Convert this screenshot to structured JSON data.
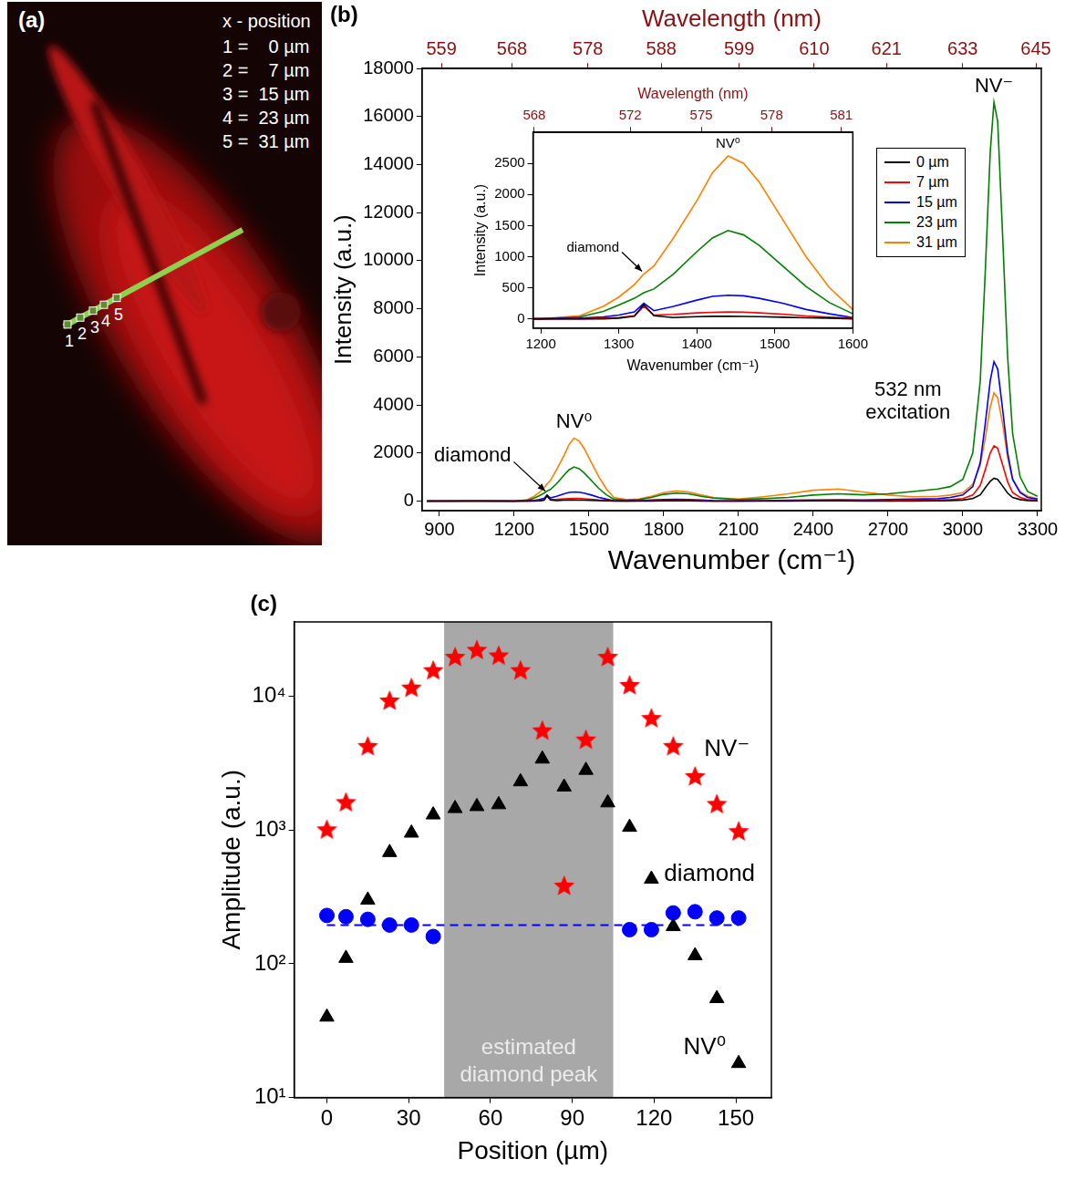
{
  "image_panel": {
    "panel_label": "(a)",
    "key_title": "x - position",
    "key_rows": [
      "1 =    0 µm",
      "2 =    7 µm",
      "3 =  15 µm",
      "4 =  23 µm",
      "5 =  31 µm"
    ],
    "markers": [
      "1",
      "2",
      "3",
      "4",
      "5"
    ]
  },
  "chart_data": [
    {
      "panel_label": "(b)",
      "type": "line",
      "x_label": "Wavenumber (cm⁻¹)",
      "y_label": "Intensity (a.u.)",
      "x2_label": "Wavelength (nm)",
      "xlim": [
        830,
        3315
      ],
      "xticks": [
        900,
        1200,
        1500,
        1800,
        2100,
        2400,
        2700,
        3000,
        3300
      ],
      "x2lim": [
        556.58,
        645.91
      ],
      "x2ticks": [
        559,
        568,
        578,
        588,
        599,
        610,
        621,
        633,
        645
      ],
      "ylim": [
        -400,
        18000
      ],
      "yticks": [
        0,
        2000,
        4000,
        6000,
        8000,
        10000,
        12000,
        14000,
        16000,
        18000
      ],
      "grid": false,
      "legend": "upper right",
      "x": [
        850,
        950,
        1050,
        1150,
        1200,
        1250,
        1280,
        1300,
        1320,
        1332,
        1345,
        1370,
        1400,
        1420,
        1440,
        1460,
        1480,
        1510,
        1540,
        1570,
        1600,
        1650,
        1700,
        1750,
        1800,
        1850,
        1900,
        1950,
        2000,
        2100,
        2200,
        2300,
        2400,
        2500,
        2600,
        2700,
        2800,
        2900,
        2950,
        3000,
        3040,
        3070,
        3090,
        3110,
        3125,
        3140,
        3160,
        3180,
        3200,
        3230,
        3260,
        3300
      ],
      "series": [
        {
          "name": "0 µm",
          "color": "#000000",
          "values": [
            0,
            0,
            0,
            0,
            0,
            0,
            0,
            10,
            40,
            230,
            50,
            20,
            35,
            40,
            40,
            38,
            35,
            25,
            15,
            10,
            0,
            0,
            0,
            0,
            10,
            10,
            10,
            0,
            0,
            0,
            0,
            0,
            10,
            10,
            0,
            0,
            0,
            10,
            20,
            40,
            100,
            260,
            550,
            820,
            950,
            900,
            620,
            330,
            150,
            60,
            20,
            10
          ]
        },
        {
          "name": "7 µm",
          "color": "#ff0000",
          "values": [
            0,
            0,
            0,
            0,
            0,
            0,
            10,
            20,
            50,
            200,
            60,
            70,
            95,
            105,
            110,
            108,
            95,
            75,
            45,
            25,
            10,
            0,
            10,
            10,
            20,
            20,
            20,
            10,
            0,
            0,
            10,
            10,
            10,
            20,
            10,
            20,
            30,
            40,
            60,
            100,
            250,
            650,
            1300,
            2000,
            2300,
            2200,
            1500,
            800,
            350,
            150,
            60,
            30
          ]
        },
        {
          "name": "15 µm",
          "color": "#0000ff",
          "values": [
            0,
            0,
            10,
            0,
            0,
            10,
            30,
            60,
            110,
            250,
            130,
            200,
            300,
            360,
            380,
            370,
            330,
            250,
            150,
            80,
            20,
            10,
            20,
            40,
            60,
            70,
            60,
            40,
            20,
            10,
            20,
            30,
            40,
            50,
            40,
            60,
            80,
            100,
            150,
            250,
            600,
            1600,
            3200,
            5000,
            5800,
            5500,
            3800,
            2000,
            900,
            350,
            150,
            80
          ]
        },
        {
          "name": "23 µm",
          "color": "#008000",
          "values": [
            0,
            10,
            0,
            10,
            0,
            30,
            120,
            220,
            330,
            420,
            480,
            720,
            1080,
            1300,
            1420,
            1350,
            1180,
            850,
            520,
            260,
            80,
            30,
            60,
            150,
            280,
            330,
            300,
            200,
            120,
            60,
            100,
            150,
            250,
            300,
            260,
            300,
            400,
            500,
            600,
            900,
            2000,
            5000,
            9500,
            14500,
            16600,
            15800,
            11000,
            6000,
            2800,
            1000,
            400,
            200
          ]
        },
        {
          "name": "31 µm",
          "color": "#ff8000",
          "values": [
            10,
            0,
            20,
            10,
            0,
            50,
            200,
            350,
            550,
            720,
            850,
            1300,
            1900,
            2350,
            2620,
            2500,
            2200,
            1600,
            1000,
            500,
            150,
            60,
            80,
            200,
            350,
            420,
            380,
            250,
            150,
            80,
            180,
            300,
            450,
            500,
            380,
            250,
            180,
            200,
            250,
            350,
            700,
            1500,
            2600,
            3900,
            4500,
            4300,
            3200,
            1800,
            900,
            400,
            200,
            100
          ]
        }
      ],
      "annotations": [
        {
          "text": "NV⁰",
          "x": 1440,
          "y": 2620
        },
        {
          "text": "NV⁻",
          "x": 3125,
          "y": 16600
        },
        {
          "text": "532 nm excitation",
          "x": 2780,
          "y": 3000
        }
      ],
      "arrow_annotations": [
        {
          "text": "diamond",
          "x": 1332,
          "y": 300
        }
      ],
      "inset": {
        "type": "line",
        "x_label": "Wavenumber (cm⁻¹)",
        "y_label": "Intensity (a.u.)",
        "x2_label": "Wavelength (nm)",
        "xlim": [
          1190,
          1600
        ],
        "xticks": [
          1200,
          1300,
          1400,
          1500,
          1600
        ],
        "x2lim": [
          567.95,
          581.5
        ],
        "x2ticks": [
          568,
          572,
          575,
          578,
          581
        ],
        "ylim": [
          -150,
          3000
        ],
        "yticks": [
          0,
          500,
          1000,
          1500,
          2000,
          2500
        ],
        "grid": false,
        "annotations": [
          {
            "text": "NV⁰",
            "x": 1440,
            "y": 2620
          }
        ],
        "arrow_annotations": [
          {
            "text": "diamond",
            "x": 1332,
            "y": 720
          }
        ]
      }
    },
    {
      "panel_label": "(c)",
      "type": "scatter",
      "log": "y",
      "x_label": "Position (µm)",
      "y_label": "Amplitude (a.u.)",
      "xlim": [
        -12,
        163
      ],
      "xticks": [
        0,
        30,
        60,
        90,
        120,
        150
      ],
      "ylim": [
        10,
        36000
      ],
      "yticks": [
        {
          "value": 10,
          "label": "10¹"
        },
        {
          "value": 100,
          "label": "10²"
        },
        {
          "value": 1000,
          "label": "10³"
        },
        {
          "value": 10000,
          "label": "10⁴"
        }
      ],
      "grid": false,
      "x": [
        0,
        7,
        15,
        23,
        31,
        39,
        47,
        55,
        63,
        71,
        79,
        87,
        95,
        103,
        111,
        119,
        127,
        135,
        143,
        151
      ],
      "series": [
        {
          "name": "NV⁻",
          "color": "#ff0000",
          "marker": "star",
          "values": [
            1000,
            1600,
            4200,
            9200,
            11500,
            15500,
            19500,
            22000,
            20000,
            15500,
            5500,
            380,
            4700,
            19500,
            12000,
            6800,
            4200,
            2500,
            1550,
            970
          ]
        },
        {
          "name": "NV⁰",
          "color": "#000000",
          "marker": "triangle",
          "values": [
            40,
            110,
            300,
            680,
            950,
            1300,
            1450,
            1500,
            1550,
            2300,
            3400,
            2100,
            2800,
            1600,
            1050,
            430,
            190,
            115,
            55,
            18
          ]
        },
        {
          "name": "diamond",
          "color": "#0000ff",
          "marker": "circle",
          "values": [
            230,
            225,
            215,
            195,
            195,
            160,
            null,
            null,
            null,
            null,
            null,
            null,
            null,
            null,
            180,
            180,
            240,
            245,
            220,
            220
          ]
        }
      ],
      "reference_lines": [
        {
          "value": 195,
          "x": [
            0,
            151
          ],
          "color": "#0000ff",
          "line_style": "dashed"
        }
      ],
      "shaded_region": {
        "x": [
          43,
          105
        ],
        "label": "estimated diamond peak",
        "color": "#a8a8a8"
      }
    }
  ]
}
